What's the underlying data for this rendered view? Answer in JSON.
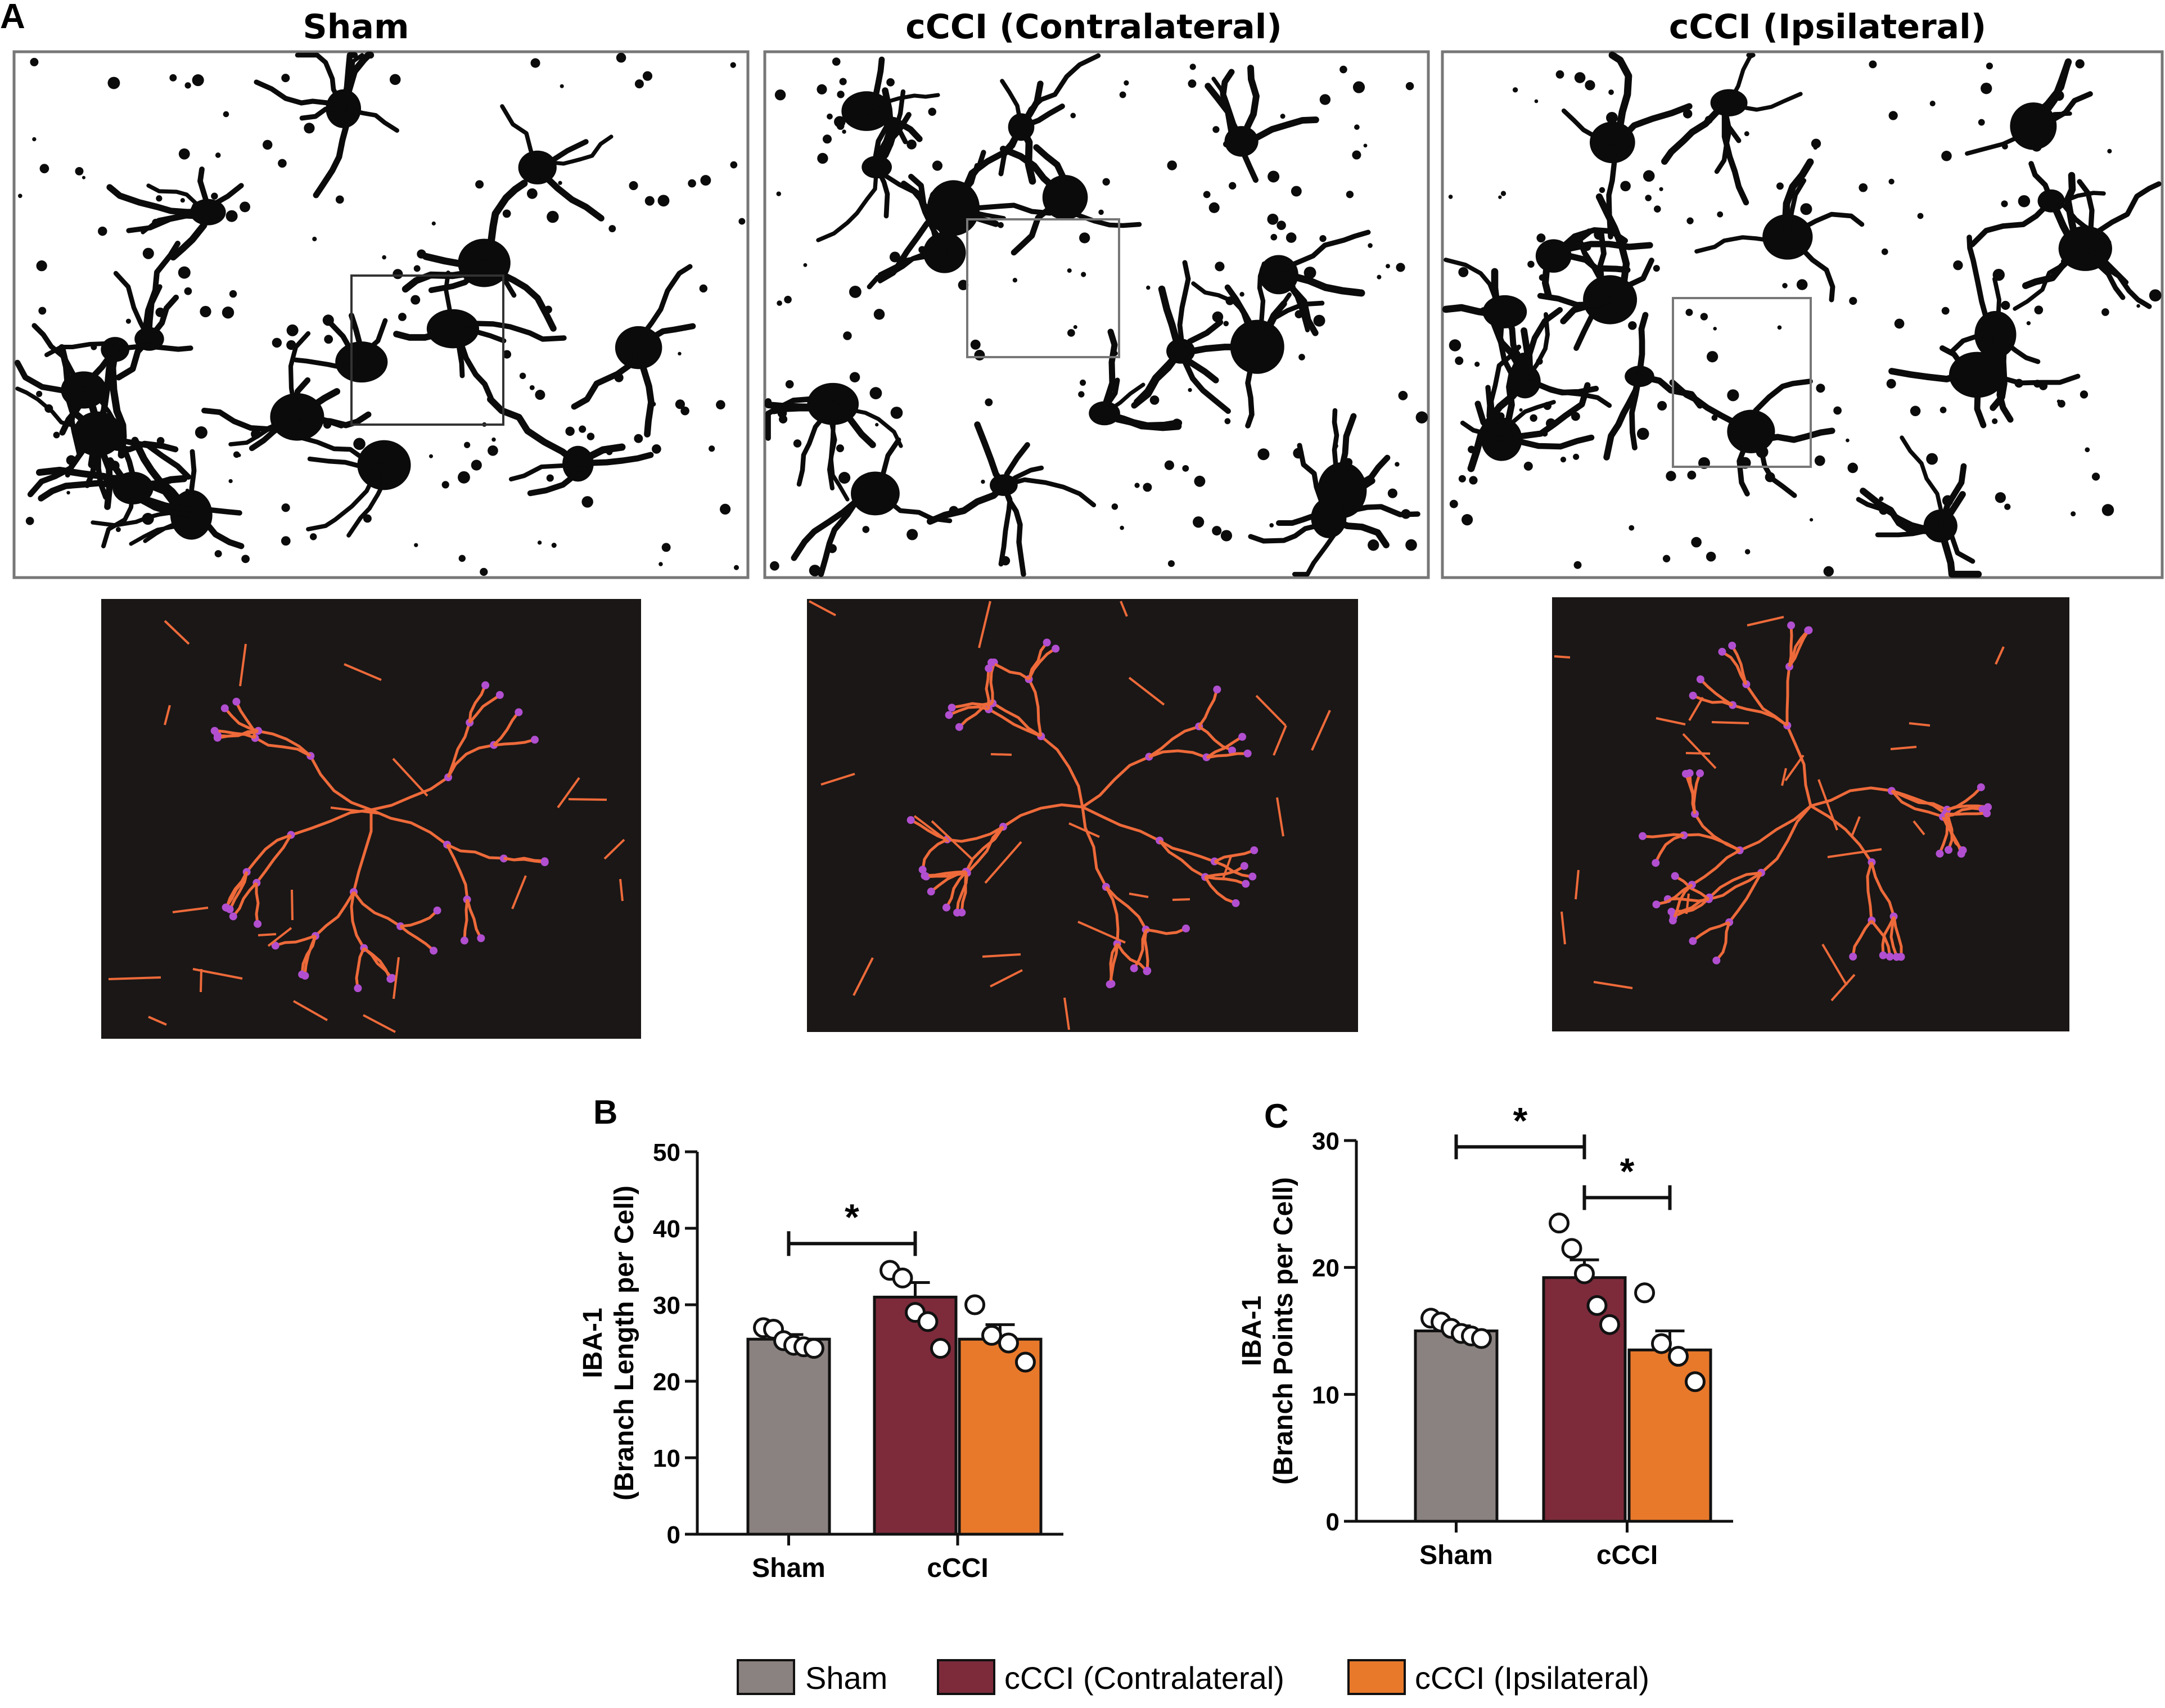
{
  "figure": {
    "panel_a": {
      "label": "A",
      "columns": [
        {
          "title": "Sham"
        },
        {
          "title": "cCCI (Contralateral)"
        },
        {
          "title": "cCCI (Ipsilateral)"
        }
      ]
    },
    "colors": {
      "sham": "#8a8280",
      "contralateral": "#7d2b3b",
      "ipsilateral": "#e8792b",
      "skeleton_branch": "#ee6a3a",
      "skeleton_junction": "#b14fd0",
      "skeleton_background": "#1a1716",
      "micrograph_background": "#ffffff",
      "micrograph_cell": "#0b0b0b"
    },
    "legend": [
      {
        "label": "Sham",
        "color": "#8a8280"
      },
      {
        "label": "cCCI (Contralateral)",
        "color": "#7d2b3b"
      },
      {
        "label": "cCCI (Ipsilateral)",
        "color": "#e8792b"
      }
    ]
  },
  "chart_data": [
    {
      "type": "bar",
      "panel": "B",
      "ylabel_line1": "IBA-1",
      "ylabel_line2": "(Branch Length per Cell)",
      "ylim": [
        0,
        50
      ],
      "yticks": [
        0,
        10,
        20,
        30,
        40,
        50
      ],
      "groups": [
        "Sham",
        "cCCI"
      ],
      "bars": [
        {
          "series": "Sham",
          "group": "Sham",
          "value": 25.5,
          "sem": 0.6,
          "points": [
            27.0,
            26.8,
            25.3,
            24.7,
            24.5,
            24.3
          ]
        },
        {
          "series": "cCCI (Contralateral)",
          "group": "cCCI",
          "value": 31.0,
          "sem": 1.9,
          "points": [
            34.5,
            33.5,
            29.0,
            27.8,
            24.3
          ]
        },
        {
          "series": "cCCI (Ipsilateral)",
          "group": "cCCI",
          "value": 25.5,
          "sem": 1.9,
          "points": [
            30.0,
            26.0,
            25.0,
            22.5
          ]
        }
      ],
      "significance": [
        {
          "from_bar": 0,
          "to_bar": 1,
          "label": "*",
          "y": 38
        }
      ]
    },
    {
      "type": "bar",
      "panel": "C",
      "ylabel_line1": "IBA-1",
      "ylabel_line2": "(Branch Points per Cell)",
      "ylim": [
        0,
        30
      ],
      "yticks": [
        0,
        10,
        20,
        30
      ],
      "groups": [
        "Sham",
        "cCCI"
      ],
      "bars": [
        {
          "series": "Sham",
          "group": "Sham",
          "value": 15.0,
          "sem": 0.4,
          "points": [
            16.0,
            15.7,
            15.2,
            14.8,
            14.6,
            14.4
          ]
        },
        {
          "series": "cCCI (Contralateral)",
          "group": "cCCI",
          "value": 19.2,
          "sem": 1.4,
          "points": [
            23.5,
            21.5,
            19.5,
            17.0,
            15.5
          ]
        },
        {
          "series": "cCCI (Ipsilateral)",
          "group": "cCCI",
          "value": 13.5,
          "sem": 1.5,
          "points": [
            18.0,
            14.0,
            13.0,
            11.0
          ]
        }
      ],
      "significance": [
        {
          "from_bar": 0,
          "to_bar": 1,
          "label": "*",
          "y": 29.5
        },
        {
          "from_bar": 1,
          "to_bar": 2,
          "label": "*",
          "y": 25.5
        }
      ]
    }
  ]
}
